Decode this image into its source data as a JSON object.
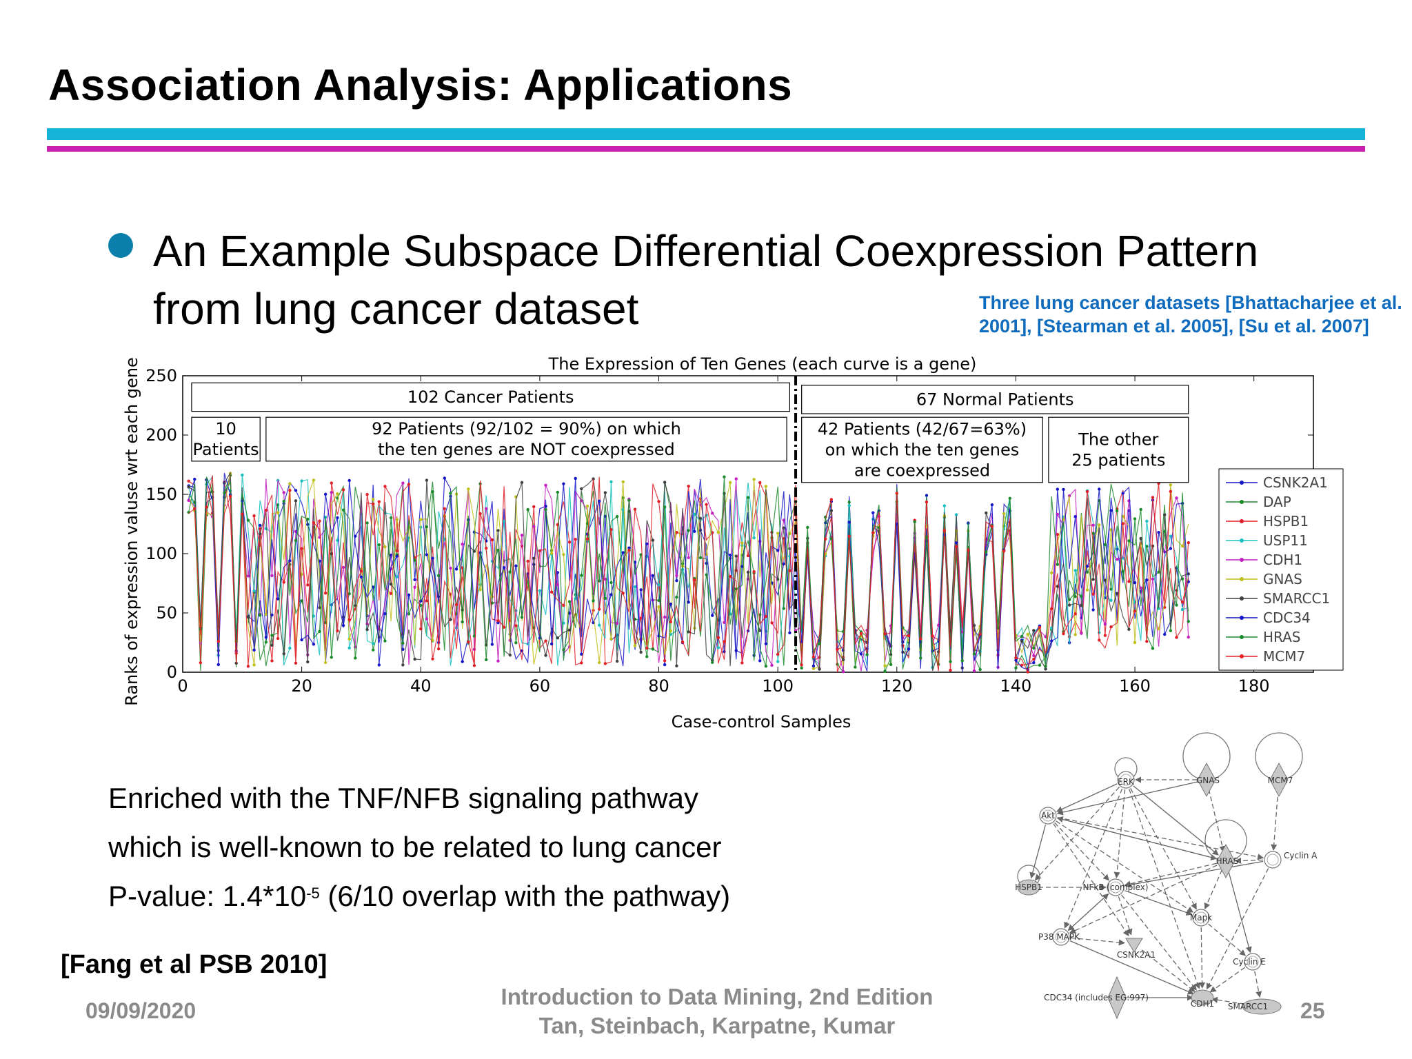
{
  "slide": {
    "title": "Association Analysis: Applications",
    "bullet": "An Example Subspace Differential Coexpression Pattern from lung cancer dataset",
    "reference_note_line1": "Three lung cancer datasets [Bhattacharjee et al.",
    "reference_note_line2": "2001], [Stearman et al. 2005], [Su et al. 2007]",
    "enrich_line1": "Enriched with the TNF/NFB signaling pathway",
    "enrich_line2": "which is well-known to be related to lung cancer",
    "pvalue_prefix": "P-value: 1.4*10",
    "pvalue_exp": "-5",
    "pvalue_suffix": " (6/10 overlap with the pathway)",
    "citation": "[Fang et al PSB 2010]",
    "date": "09/09/2020",
    "footer_line1": "Introduction to Data Mining, 2nd Edition",
    "footer_line2": "Tan, Steinbach, Karpatne, Kumar",
    "page_number": "25",
    "colors": {
      "accent_cyan": "#15b3d8",
      "accent_magenta": "#c81fb0",
      "bullet": "#0b7fab",
      "ref_blue": "#0e6bbd",
      "footer_gray": "#8a8a8a"
    }
  },
  "chart_data": {
    "type": "line",
    "title": "The Expression of Ten Genes (each curve is a gene)",
    "xlabel": "Case-control Samples",
    "ylabel": "Ranks of expression valuse wrt each gene",
    "xlim": [
      0,
      190
    ],
    "ylim": [
      0,
      250
    ],
    "xticks": [
      0,
      20,
      40,
      60,
      80,
      100,
      120,
      140,
      160,
      180
    ],
    "yticks": [
      0,
      50,
      100,
      150,
      200,
      250
    ],
    "divider_x": 103,
    "legend_position": "right",
    "series": [
      {
        "name": "CSNK2A1",
        "color": "#1515c8"
      },
      {
        "name": "DAP",
        "color": "#1b8a2b"
      },
      {
        "name": "HSPB1",
        "color": "#e01f26"
      },
      {
        "name": "USP11",
        "color": "#19bfbf"
      },
      {
        "name": "CDH1",
        "color": "#c21fbf"
      },
      {
        "name": "GNAS",
        "color": "#bfbf19"
      },
      {
        "name": "SMARCC1",
        "color": "#404040"
      },
      {
        "name": "CDC34",
        "color": "#1515c8"
      },
      {
        "name": "HRAS",
        "color": "#1b8a2b"
      },
      {
        "name": "MCM7",
        "color": "#e01f26"
      }
    ],
    "annotations": [
      {
        "text": "102 Cancer Patients"
      },
      {
        "text": "67 Normal Patients"
      },
      {
        "text": "10 Patients",
        "line1": "10",
        "line2": "Patients"
      },
      {
        "text": "92 Patients (92/102 = 90%) on which the ten genes are NOT coexpressed",
        "line1": "92 Patients (92/102 = 90%) on which",
        "line2": "the ten genes are NOT coexpressed"
      },
      {
        "text": "42 Patients (42/67=63%) on which the ten genes are coexpressed",
        "line1": "42 Patients (42/67=63%)",
        "line2": "on which the ten genes",
        "line3": "are coexpressed"
      },
      {
        "text": "The other 25 patients",
        "line1": "The other",
        "line2": "25 patients"
      }
    ]
  },
  "network": {
    "nodes": [
      {
        "id": "ERK",
        "label": "ERK",
        "shape": "circle"
      },
      {
        "id": "GNAS",
        "label": "GNAS",
        "shape": "diamond"
      },
      {
        "id": "MCM7",
        "label": "MCM7",
        "shape": "diamond"
      },
      {
        "id": "Akt",
        "label": "Akt",
        "shape": "circle"
      },
      {
        "id": "HRAS",
        "label": "HRAS",
        "shape": "diamond"
      },
      {
        "id": "CyclinA",
        "label": "Cyclin A",
        "shape": "circle"
      },
      {
        "id": "HSPB1",
        "label": "HSPB1",
        "shape": "ellipse"
      },
      {
        "id": "NFkB",
        "label": "NFkB (complex)",
        "shape": "circle"
      },
      {
        "id": "Mapk",
        "label": "Mapk",
        "shape": "circle"
      },
      {
        "id": "P38",
        "label": "P38 MAPK",
        "shape": "circle"
      },
      {
        "id": "CSNK2A1",
        "label": "CSNK2A1",
        "shape": "triangle"
      },
      {
        "id": "CyclinE",
        "label": "Cyclin E",
        "shape": "circle"
      },
      {
        "id": "CDC34",
        "label": "CDC34 (includes EG:997)",
        "shape": "diamond"
      },
      {
        "id": "CDH1",
        "label": "CDH1",
        "shape": "ellipse"
      },
      {
        "id": "SMARCC1",
        "label": "SMARCC1",
        "shape": "ellipse"
      }
    ],
    "edges": [
      [
        "ERK",
        "Akt"
      ],
      [
        "ERK",
        "HSPB1"
      ],
      [
        "ERK",
        "NFkB"
      ],
      [
        "ERK",
        "P38"
      ],
      [
        "ERK",
        "HRAS"
      ],
      [
        "ERK",
        "Mapk"
      ],
      [
        "ERK",
        "CDH1"
      ],
      [
        "GNAS",
        "ERK"
      ],
      [
        "GNAS",
        "Akt"
      ],
      [
        "GNAS",
        "HRAS"
      ],
      [
        "MCM7",
        "CyclinA"
      ],
      [
        "Akt",
        "NFkB"
      ],
      [
        "Akt",
        "HRAS"
      ],
      [
        "Akt",
        "CSNK2A1"
      ],
      [
        "Akt",
        "Mapk"
      ],
      [
        "Akt",
        "CyclinA"
      ],
      [
        "Akt",
        "HSPB1"
      ],
      [
        "HRAS",
        "NFkB"
      ],
      [
        "HRAS",
        "P38"
      ],
      [
        "HRAS",
        "Mapk"
      ],
      [
        "HRAS",
        "CyclinE"
      ],
      [
        "HRAS",
        "Akt"
      ],
      [
        "CyclinA",
        "CDH1"
      ],
      [
        "CyclinA",
        "HRAS"
      ],
      [
        "CyclinA",
        "NFkB"
      ],
      [
        "NFkB",
        "P38"
      ],
      [
        "NFkB",
        "CSNK2A1"
      ],
      [
        "NFkB",
        "CDH1"
      ],
      [
        "NFkB",
        "Mapk"
      ],
      [
        "HSPB1",
        "NFkB"
      ],
      [
        "P38",
        "NFkB"
      ],
      [
        "P38",
        "CSNK2A1"
      ],
      [
        "P38",
        "CDH1"
      ],
      [
        "Mapk",
        "CDH1"
      ],
      [
        "Mapk",
        "CyclinE"
      ],
      [
        "CSNK2A1",
        "CDH1"
      ],
      [
        "CDC34",
        "CDH1"
      ],
      [
        "CyclinE",
        "CDH1"
      ],
      [
        "CyclinE",
        "SMARCC1"
      ],
      [
        "SMARCC1",
        "CDH1"
      ]
    ]
  }
}
